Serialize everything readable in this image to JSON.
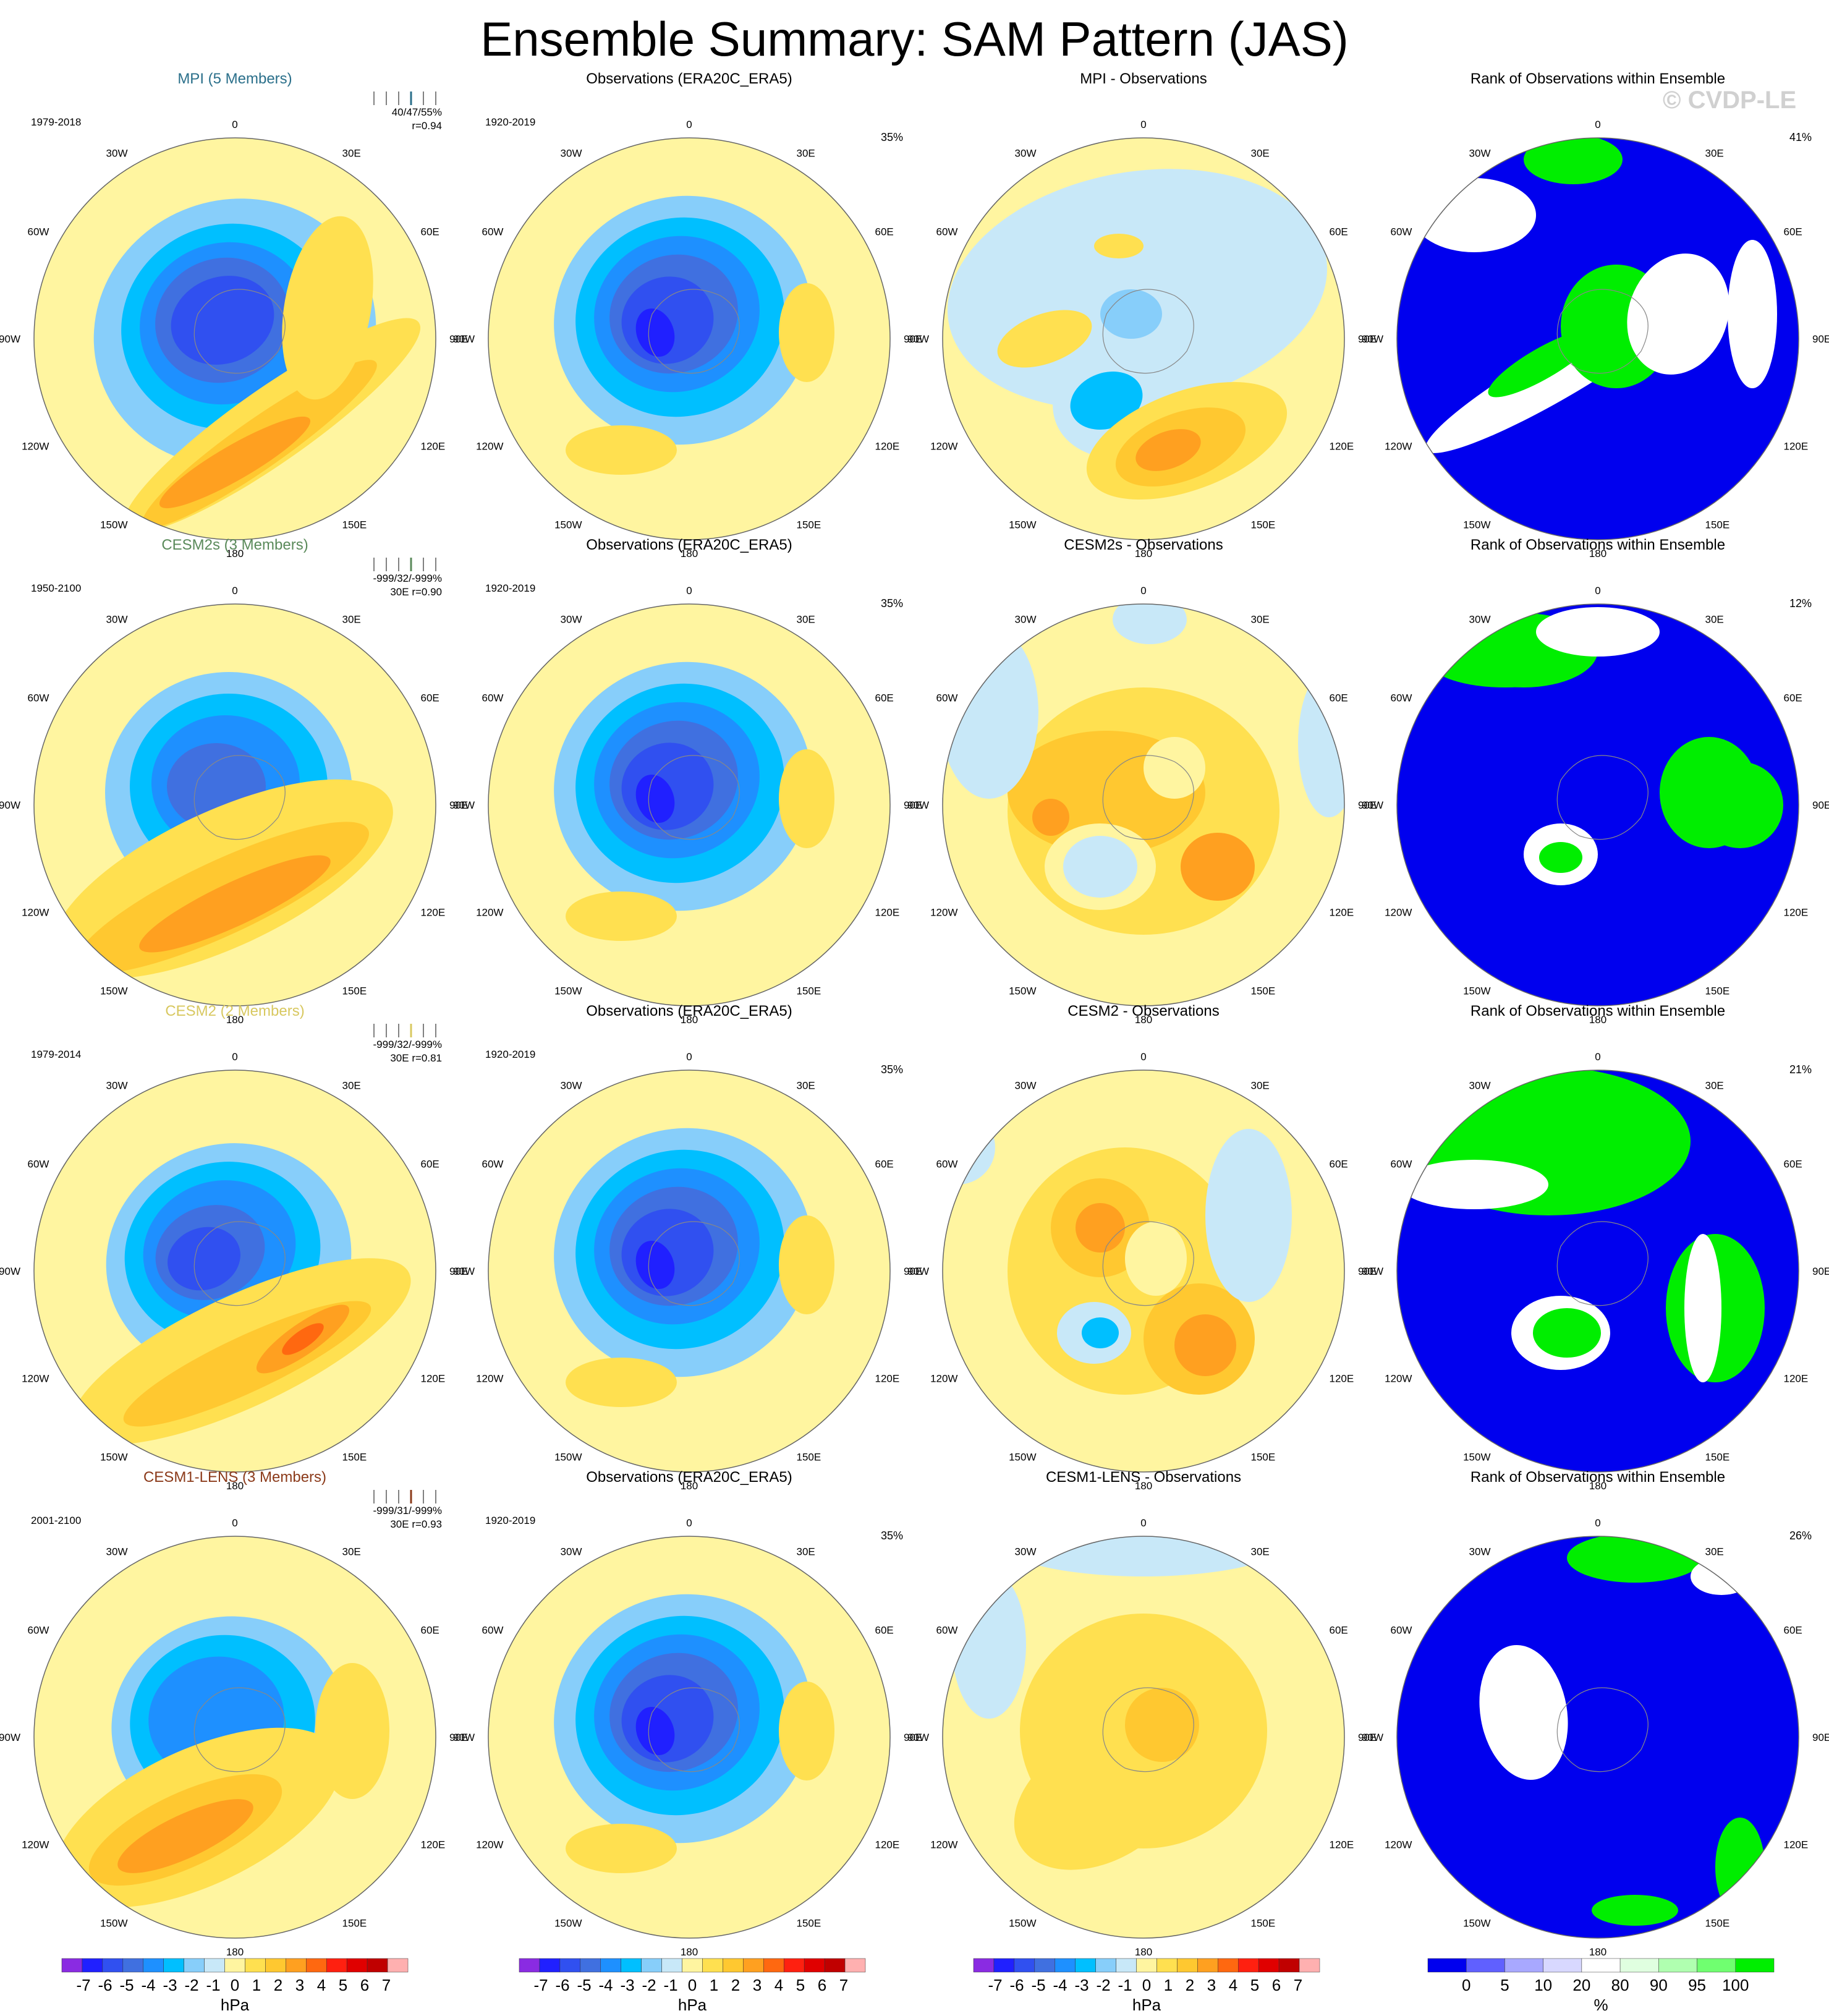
{
  "title": "Ensemble Summary: SAM Pattern (JAS)",
  "watermark": "© CVDP-LE",
  "colors": {
    "ocean_default": "#fff5a0",
    "land": "#a8a8a8",
    "rank_blue": "#0000ee",
    "rank_green": "#00ee00",
    "rank_white": "#ffffff",
    "names": {
      "MPI": "#2a6f8a",
      "CESM2s": "#5a8a5a",
      "CESM2": "#d8c860",
      "CESM1-LENS": "#8b3a1a"
    }
  },
  "lon_labels": [
    "0",
    "30E",
    "60E",
    "90E",
    "120E",
    "150E",
    "180",
    "150W",
    "120W",
    "90W",
    "60W",
    "30W"
  ],
  "chart_data": [
    {
      "type": "heatmap",
      "panel": "model",
      "row": 0,
      "title": "MPI (5 Members)",
      "title_color": "#2a6f8a",
      "period": "1979-2018",
      "stats": "40/47/55%",
      "stats2": "r=0.94"
    },
    {
      "type": "heatmap",
      "panel": "obs",
      "row": 0,
      "title": "Observations (ERA20C_ERA5)",
      "period": "1920-2019",
      "pct": "35%"
    },
    {
      "type": "heatmap",
      "panel": "diff",
      "row": 0,
      "title": "MPI - Observations"
    },
    {
      "type": "heatmap",
      "panel": "rank",
      "row": 0,
      "title": "Rank of Observations within Ensemble",
      "pct": "41%"
    },
    {
      "type": "heatmap",
      "panel": "model",
      "row": 1,
      "title": "CESM2s (3 Members)",
      "title_color": "#5a8a5a",
      "period": "1950-2100",
      "stats": "-999/32/-999%",
      "stats2": "30E r=0.90"
    },
    {
      "type": "heatmap",
      "panel": "obs",
      "row": 1,
      "title": "Observations (ERA20C_ERA5)",
      "period": "1920-2019",
      "pct": "35%"
    },
    {
      "type": "heatmap",
      "panel": "diff",
      "row": 1,
      "title": "CESM2s - Observations"
    },
    {
      "type": "heatmap",
      "panel": "rank",
      "row": 1,
      "title": "Rank of Observations within Ensemble",
      "pct": "12%"
    },
    {
      "type": "heatmap",
      "panel": "model",
      "row": 2,
      "title": "CESM2 (2 Members)",
      "title_color": "#d8c860",
      "period": "1979-2014",
      "stats": "-999/32/-999%",
      "stats2": "30E r=0.81"
    },
    {
      "type": "heatmap",
      "panel": "obs",
      "row": 2,
      "title": "Observations (ERA20C_ERA5)",
      "period": "1920-2019",
      "pct": "35%"
    },
    {
      "type": "heatmap",
      "panel": "diff",
      "row": 2,
      "title": "CESM2 - Observations"
    },
    {
      "type": "heatmap",
      "panel": "rank",
      "row": 2,
      "title": "Rank of Observations within Ensemble",
      "pct": "21%"
    },
    {
      "type": "heatmap",
      "panel": "model",
      "row": 3,
      "title": "CESM1-LENS (3 Members)",
      "title_color": "#8b3a1a",
      "period": "2001-2100",
      "stats": "-999/31/-999%",
      "stats2": "30E r=0.93"
    },
    {
      "type": "heatmap",
      "panel": "obs",
      "row": 3,
      "title": "Observations (ERA20C_ERA5)",
      "period": "1920-2019",
      "pct": "35%"
    },
    {
      "type": "heatmap",
      "panel": "diff",
      "row": 3,
      "title": "CESM1-LENS - Observations"
    },
    {
      "type": "heatmap",
      "panel": "rank",
      "row": 3,
      "title": "Rank of Observations within Ensemble",
      "pct": "26%"
    }
  ],
  "colorbar_hpa": {
    "labels": [
      "-7",
      "-6",
      "-5",
      "-4",
      "-3",
      "-2",
      "-1",
      "0",
      "1",
      "2",
      "3",
      "4",
      "5",
      "6",
      "7"
    ],
    "colors": [
      "#8a2be2",
      "#2020ff",
      "#3050f0",
      "#4070e0",
      "#1e90ff",
      "#00bfff",
      "#87cefa",
      "#c8e8f8",
      "#fff5a0",
      "#ffe050",
      "#ffc830",
      "#ffa020",
      "#ff6810",
      "#ff2010",
      "#e00000",
      "#c00000",
      "#ffb0b0"
    ],
    "unit": "hPa"
  },
  "colorbar_rank": {
    "labels": [
      "0",
      "5",
      "10",
      "20",
      "80",
      "90",
      "95",
      "100"
    ],
    "colors": [
      "#0000ee",
      "#6060ff",
      "#a8a8ff",
      "#d8d8ff",
      "#ffffff",
      "#e0ffe0",
      "#b0ffb0",
      "#70ff70",
      "#00ee00"
    ],
    "unit": "%"
  }
}
